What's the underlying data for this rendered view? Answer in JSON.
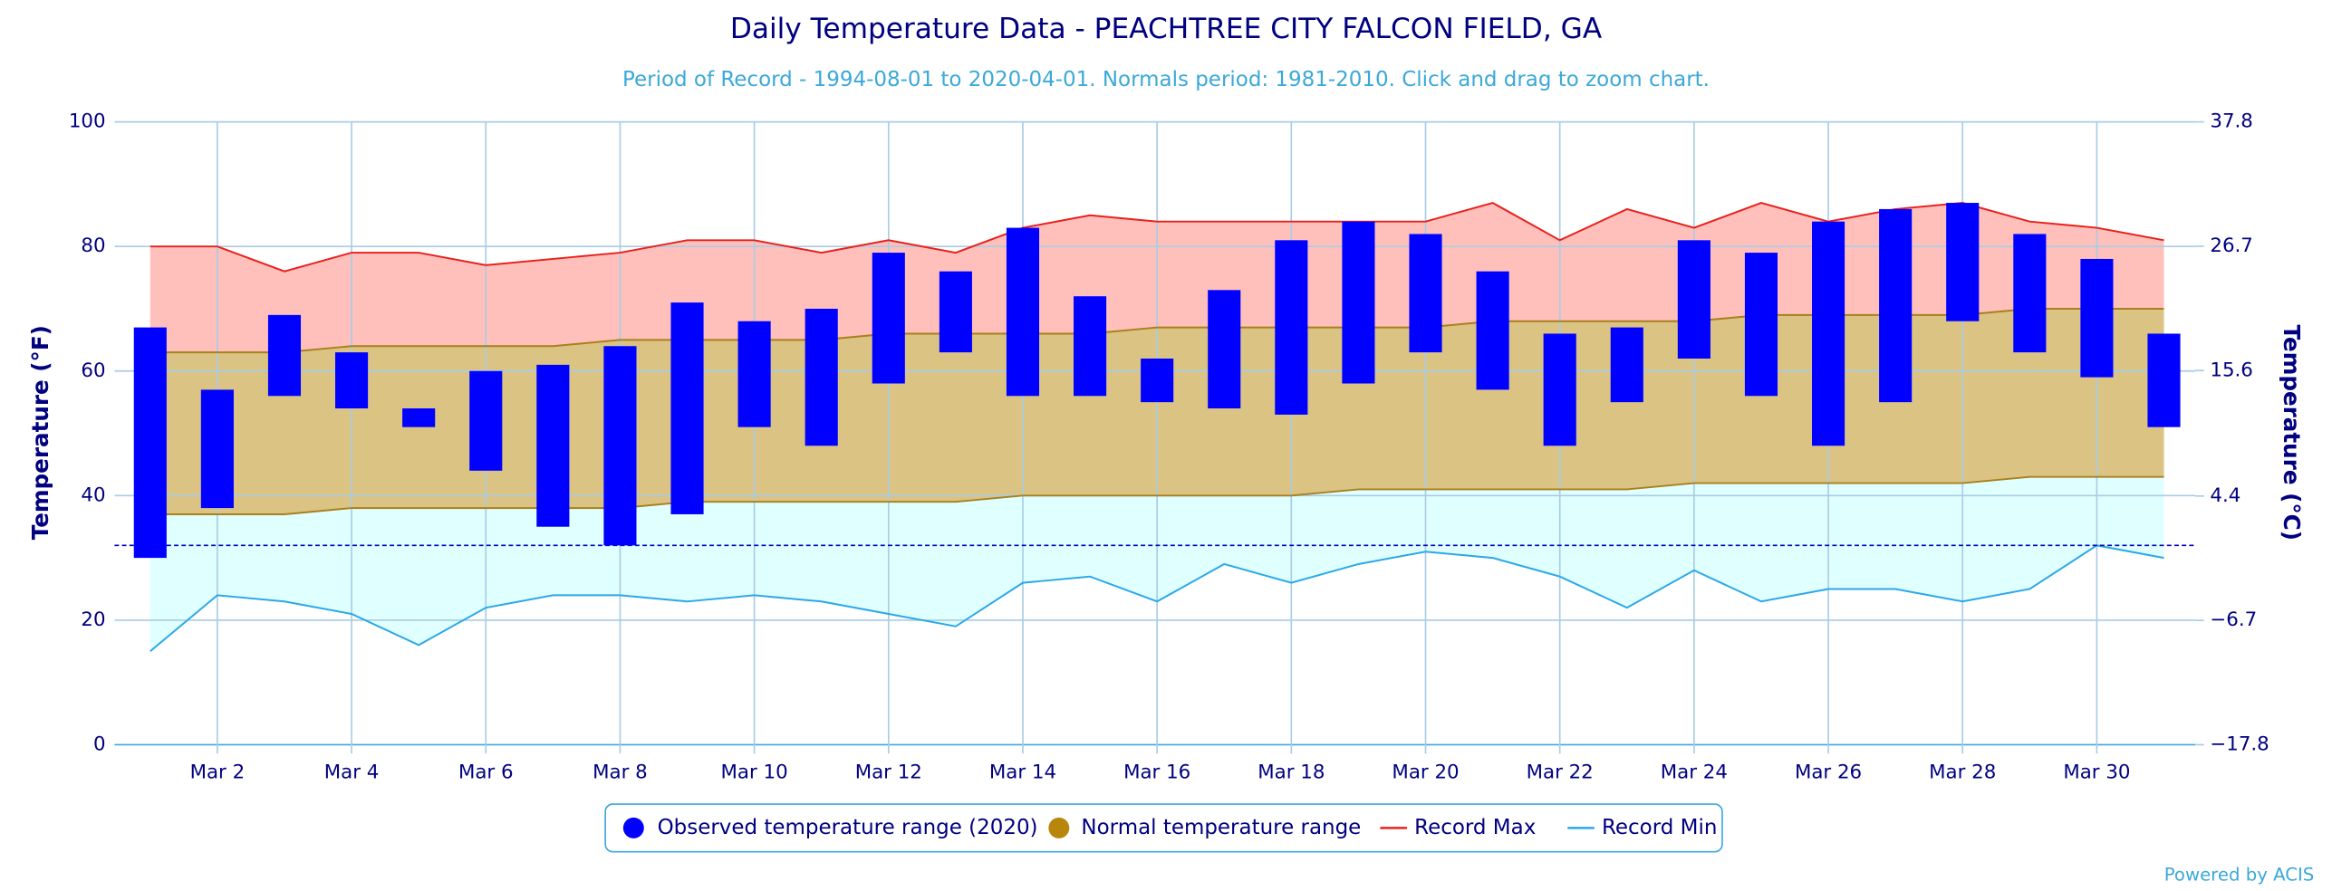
{
  "chart_data": {
    "type": "temperature-range",
    "title": "Daily Temperature Data - PEACHTREE CITY FALCON FIELD, GA",
    "subtitle": "Period of Record - 1994-08-01 to 2020-04-01. Normals period: 1981-2010. Click and drag to zoom chart.",
    "y_label": "Temperature (°F)",
    "y2_label": "Temperature (°C)",
    "credit": "Powered by ACIS",
    "categories": [
      null,
      "Mar 2",
      null,
      "Mar 4",
      null,
      "Mar 6",
      null,
      "Mar 8",
      null,
      "Mar 10",
      null,
      "Mar 12",
      null,
      "Mar 14",
      null,
      "Mar 16",
      null,
      "Mar 18",
      null,
      "Mar 20",
      null,
      "Mar 22",
      null,
      "Mar 24",
      null,
      "Mar 26",
      null,
      "Mar 28",
      null,
      "Mar 30",
      null
    ],
    "ylim": [
      0,
      100
    ],
    "yticks": [
      0,
      20,
      40,
      60,
      80,
      100
    ],
    "y2lim": [
      -17.8,
      37.8
    ],
    "y2ticks": [
      {
        "value": -17.8,
        "label": "−17.8"
      },
      {
        "value": -6.7,
        "label": "−6.7"
      },
      4.4,
      15.6,
      26.7,
      37.8
    ],
    "reference_line": 32,
    "grid": true,
    "series": [
      {
        "name": "Observed temperature range (2020)",
        "color": "#0000ff",
        "values": [
          [
            30,
            67
          ],
          [
            38,
            57
          ],
          [
            56,
            69
          ],
          [
            54,
            63
          ],
          [
            51,
            54
          ],
          [
            44,
            60
          ],
          [
            35,
            61
          ],
          [
            32,
            64
          ],
          [
            37,
            71
          ],
          [
            51,
            68
          ],
          [
            48,
            70
          ],
          [
            58,
            79
          ],
          [
            63,
            76
          ],
          [
            56,
            83
          ],
          [
            56,
            72
          ],
          [
            55,
            62
          ],
          [
            54,
            73
          ],
          [
            53,
            81
          ],
          [
            58,
            84
          ],
          [
            63,
            82
          ],
          [
            57,
            76
          ],
          [
            48,
            66
          ],
          [
            55,
            67
          ],
          [
            62,
            81
          ],
          [
            56,
            79
          ],
          [
            48,
            84
          ],
          [
            55,
            86
          ],
          [
            68,
            87
          ],
          [
            63,
            82
          ],
          [
            59,
            78
          ],
          [
            51,
            66
          ]
        ]
      },
      {
        "name": "Normal temperature range",
        "color": "#b8860b",
        "values": [
          [
            37,
            63
          ],
          [
            37,
            63
          ],
          [
            37,
            63
          ],
          [
            38,
            64
          ],
          [
            38,
            64
          ],
          [
            38,
            64
          ],
          [
            38,
            64
          ],
          [
            38,
            65
          ],
          [
            39,
            65
          ],
          [
            39,
            65
          ],
          [
            39,
            65
          ],
          [
            39,
            66
          ],
          [
            39,
            66
          ],
          [
            40,
            66
          ],
          [
            40,
            66
          ],
          [
            40,
            67
          ],
          [
            40,
            67
          ],
          [
            40,
            67
          ],
          [
            41,
            67
          ],
          [
            41,
            67
          ],
          [
            41,
            68
          ],
          [
            41,
            68
          ],
          [
            41,
            68
          ],
          [
            42,
            68
          ],
          [
            42,
            69
          ],
          [
            42,
            69
          ],
          [
            42,
            69
          ],
          [
            42,
            69
          ],
          [
            43,
            70
          ],
          [
            43,
            70
          ],
          [
            43,
            70
          ]
        ]
      },
      {
        "name": "Record Max",
        "color": "#e8201c",
        "values": [
          80,
          80,
          76,
          79,
          79,
          77,
          78,
          79,
          81,
          81,
          79,
          81,
          79,
          83,
          85,
          84,
          84,
          84,
          84,
          84,
          87,
          81,
          86,
          83,
          87,
          84,
          86,
          87,
          84,
          83,
          81
        ]
      },
      {
        "name": "Record Min",
        "color": "#2aa8e8",
        "values": [
          15,
          24,
          23,
          21,
          16,
          22,
          24,
          24,
          23,
          24,
          23,
          21,
          19,
          26,
          27,
          23,
          29,
          26,
          29,
          31,
          30,
          27,
          22,
          28,
          23,
          25,
          25,
          23,
          25,
          32,
          30
        ]
      }
    ]
  }
}
